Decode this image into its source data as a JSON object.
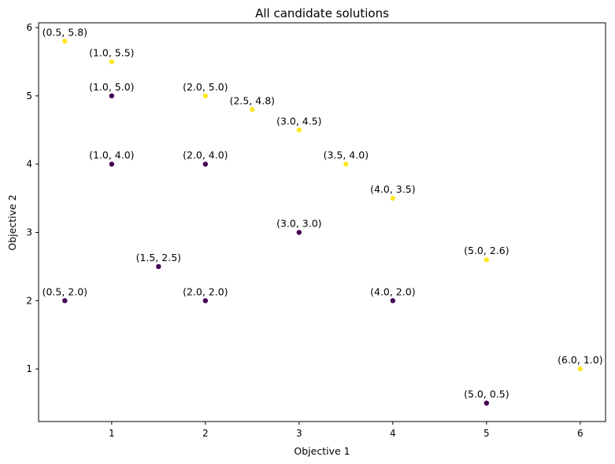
{
  "chart_data": {
    "type": "scatter",
    "title": "All candidate solutions",
    "xlabel": "Objective 1",
    "ylabel": "Objective 2",
    "xlim": [
      0.22,
      6.27
    ],
    "ylim": [
      0.23,
      6.07
    ],
    "xticks": [
      1,
      2,
      3,
      4,
      5,
      6
    ],
    "yticks": [
      1,
      2,
      3,
      4,
      5,
      6
    ],
    "grid": false,
    "colors": {
      "dominated": "#440154",
      "pareto": "#fde725"
    },
    "points": [
      {
        "x": 0.5,
        "y": 5.8,
        "label": "(0.5, 5.8)",
        "group": "pareto"
      },
      {
        "x": 1.0,
        "y": 5.5,
        "label": "(1.0, 5.5)",
        "group": "pareto"
      },
      {
        "x": 1.0,
        "y": 5.0,
        "label": "(1.0, 5.0)",
        "group": "dominated"
      },
      {
        "x": 2.0,
        "y": 5.0,
        "label": "(2.0, 5.0)",
        "group": "pareto"
      },
      {
        "x": 2.5,
        "y": 4.8,
        "label": "(2.5, 4.8)",
        "group": "pareto"
      },
      {
        "x": 3.0,
        "y": 4.5,
        "label": "(3.0, 4.5)",
        "group": "pareto"
      },
      {
        "x": 1.0,
        "y": 4.0,
        "label": "(1.0, 4.0)",
        "group": "dominated"
      },
      {
        "x": 2.0,
        "y": 4.0,
        "label": "(2.0, 4.0)",
        "group": "dominated"
      },
      {
        "x": 3.5,
        "y": 4.0,
        "label": "(3.5, 4.0)",
        "group": "pareto"
      },
      {
        "x": 4.0,
        "y": 3.5,
        "label": "(4.0, 3.5)",
        "group": "pareto"
      },
      {
        "x": 3.0,
        "y": 3.0,
        "label": "(3.0, 3.0)",
        "group": "dominated"
      },
      {
        "x": 5.0,
        "y": 2.6,
        "label": "(5.0, 2.6)",
        "group": "pareto"
      },
      {
        "x": 1.5,
        "y": 2.5,
        "label": "(1.5, 2.5)",
        "group": "dominated"
      },
      {
        "x": 0.5,
        "y": 2.0,
        "label": "(0.5, 2.0)",
        "group": "dominated"
      },
      {
        "x": 2.0,
        "y": 2.0,
        "label": "(2.0, 2.0)",
        "group": "dominated"
      },
      {
        "x": 4.0,
        "y": 2.0,
        "label": "(4.0, 2.0)",
        "group": "dominated"
      },
      {
        "x": 6.0,
        "y": 1.0,
        "label": "(6.0, 1.0)",
        "group": "pareto"
      },
      {
        "x": 5.0,
        "y": 0.5,
        "label": "(5.0, 0.5)",
        "group": "dominated"
      }
    ]
  }
}
